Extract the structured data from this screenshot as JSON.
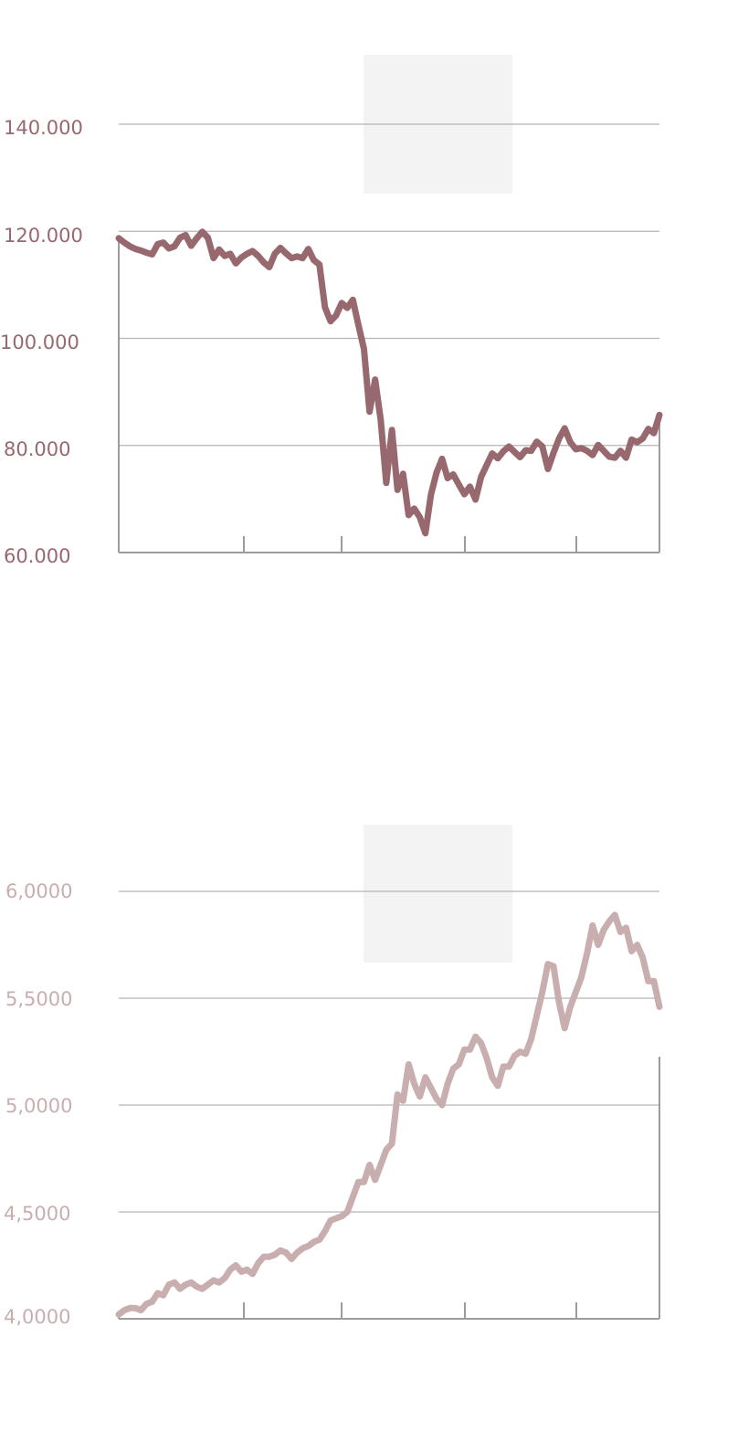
{
  "colors": {
    "top_series": "#98686f",
    "bottom_series": "#c9aeb0",
    "grid": "#b4b4b4",
    "axis": "#9c9c9c",
    "placeholder": "#f3f3f3"
  },
  "chart_data": [
    {
      "type": "line",
      "title": "",
      "xlabel": "",
      "ylabel": "",
      "y_tick_labels": [
        "60.000",
        "80.000",
        "100.000",
        "120.000",
        "140.000"
      ],
      "y_ticks": [
        60000,
        80000,
        100000,
        120000,
        140000
      ],
      "ylim": [
        60000,
        140000
      ],
      "x_tick_count": 4,
      "grid": true,
      "values": [
        118700,
        117900,
        117200,
        116700,
        116400,
        116000,
        115700,
        117600,
        117900,
        116800,
        117200,
        118800,
        119300,
        117300,
        118700,
        119900,
        118800,
        115000,
        116600,
        115400,
        115800,
        114000,
        115100,
        115800,
        116300,
        115400,
        114200,
        113300,
        115800,
        116900,
        115900,
        115000,
        115300,
        115000,
        116700,
        114600,
        113800,
        105800,
        103200,
        104300,
        106600,
        105700,
        107200,
        102500,
        98000,
        86300,
        92300,
        84800,
        73000,
        82900,
        71700,
        74700,
        67000,
        68200,
        66600,
        63600,
        70800,
        74900,
        77500,
        73900,
        74600,
        72700,
        70900,
        72300,
        69900,
        74100,
        76300,
        78500,
        77600,
        78900,
        79800,
        78800,
        77800,
        79100,
        79000,
        80700,
        79800,
        75600,
        78600,
        81300,
        83200,
        80600,
        79300,
        79500,
        79000,
        78200,
        80100,
        79000,
        77900,
        77700,
        79000,
        77700,
        81100,
        80600,
        81300,
        83100,
        82300,
        85700
      ]
    },
    {
      "type": "line",
      "title": "",
      "xlabel": "",
      "ylabel": "",
      "y_tick_labels": [
        "4,0000",
        "4,5000",
        "5,0000",
        "5,5000",
        "6,0000"
      ],
      "y_ticks": [
        4.0,
        4.5,
        5.0,
        5.5,
        6.0
      ],
      "ylim": [
        4.0,
        6.0
      ],
      "x_tick_count": 4,
      "grid": true,
      "values": [
        4.02,
        4.04,
        4.05,
        4.05,
        4.04,
        4.07,
        4.08,
        4.12,
        4.11,
        4.16,
        4.17,
        4.14,
        4.16,
        4.17,
        4.15,
        4.14,
        4.16,
        4.18,
        4.17,
        4.19,
        4.23,
        4.25,
        4.22,
        4.23,
        4.21,
        4.26,
        4.29,
        4.29,
        4.3,
        4.32,
        4.31,
        4.28,
        4.31,
        4.33,
        4.34,
        4.36,
        4.37,
        4.41,
        4.46,
        4.47,
        4.48,
        4.5,
        4.57,
        4.64,
        4.64,
        4.72,
        4.65,
        4.72,
        4.79,
        4.82,
        5.05,
        5.02,
        5.19,
        5.1,
        5.04,
        5.13,
        5.08,
        5.03,
        5.0,
        5.1,
        5.17,
        5.19,
        5.26,
        5.26,
        5.32,
        5.29,
        5.22,
        5.13,
        5.09,
        5.18,
        5.18,
        5.23,
        5.25,
        5.24,
        5.31,
        5.42,
        5.53,
        5.66,
        5.65,
        5.48,
        5.36,
        5.46,
        5.53,
        5.6,
        5.71,
        5.84,
        5.75,
        5.82,
        5.86,
        5.89,
        5.81,
        5.83,
        5.72,
        5.75,
        5.69,
        5.58,
        5.58,
        5.46
      ]
    }
  ]
}
